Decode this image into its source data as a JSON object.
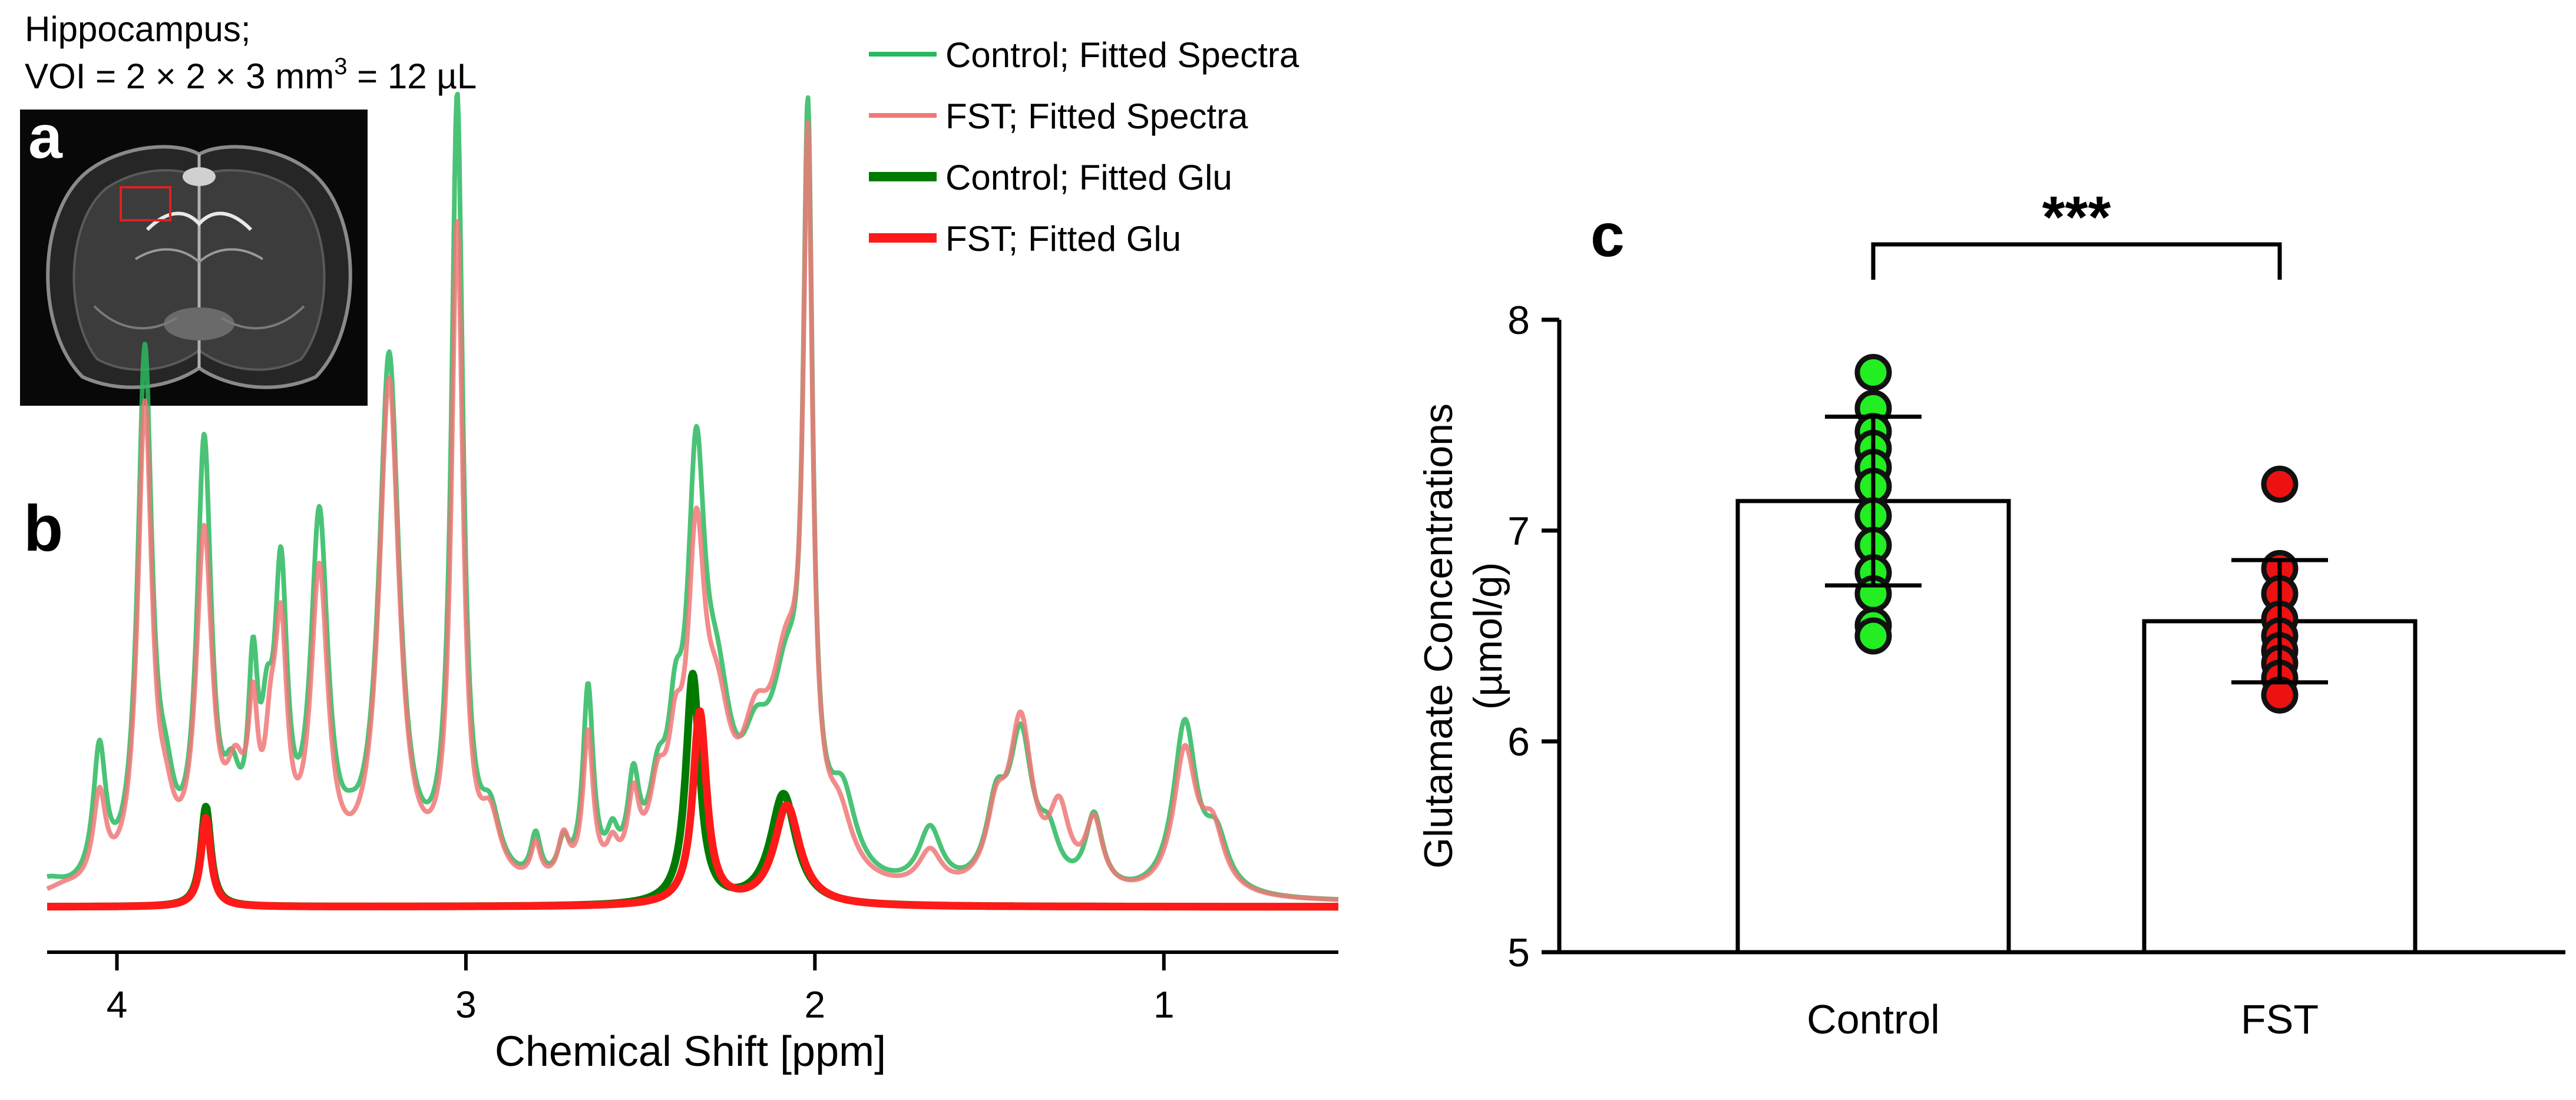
{
  "colors": {
    "control_spectra": "#2ab85e",
    "fst_spectra": "#f07878",
    "control_glu": "#007a00",
    "fst_glu": "#ff1a1a",
    "control_dot": "#22ee22",
    "fst_dot": "#ee1111",
    "mri_roi": "#e02020"
  },
  "panel_a": {
    "label": "a",
    "region": "Hippocampus;",
    "voi_prefix": "VOI = 2 × 2 × 3 mm",
    "voi_superscript": "3",
    "voi_suffix": " = 12 µL",
    "image_name": "coronal-mri-slice"
  },
  "panel_c": {
    "label": "c"
  },
  "chart_data": [
    {
      "id": "b",
      "type": "line",
      "label": "b",
      "xlabel": "Chemical Shift [ppm]",
      "ylabel": "",
      "xlim": [
        4.2,
        0.5
      ],
      "x_reversed": true,
      "xticks": [
        4,
        3,
        2,
        1
      ],
      "xtick_labels": [
        "4",
        "3",
        "2",
        "1"
      ],
      "legend": [
        {
          "label": "Control; Fitted Spectra",
          "series": "control_spectra"
        },
        {
          "label": "FST; Fitted Spectra",
          "series": "fst_spectra"
        },
        {
          "label": "Control; Fitted Glu",
          "series": "control_glu"
        },
        {
          "label": "FST; Fitted Glu",
          "series": "fst_glu"
        }
      ],
      "legend_position": "top-right",
      "series": [
        {
          "name": "Control; Fitted Spectra",
          "key": "control_spectra",
          "color": "#2ab85e",
          "width": 8,
          "baseline": 0.005,
          "peaks": [
            [
              4.2,
              0.02,
              0.06
            ],
            [
              4.05,
              0.18,
              0.022
            ],
            [
              3.92,
              0.71,
              0.025
            ],
            [
              3.86,
              0.08,
              0.03
            ],
            [
              3.75,
              0.58,
              0.025
            ],
            [
              3.67,
              0.1,
              0.03
            ],
            [
              3.61,
              0.24,
              0.017
            ],
            [
              3.57,
              0.14,
              0.02
            ],
            [
              3.53,
              0.38,
              0.022
            ],
            [
              3.42,
              0.48,
              0.03
            ],
            [
              3.33,
              0.02,
              0.03
            ],
            [
              3.22,
              0.71,
              0.035
            ],
            [
              3.025,
              1.05,
              0.02
            ],
            [
              2.93,
              0.08,
              0.035
            ],
            [
              2.8,
              0.06,
              0.017
            ],
            [
              2.72,
              0.05,
              0.02
            ],
            [
              2.65,
              0.26,
              0.018
            ],
            [
              2.58,
              0.05,
              0.02
            ],
            [
              2.52,
              0.12,
              0.02
            ],
            [
              2.45,
              0.1,
              0.03
            ],
            [
              2.4,
              0.14,
              0.025
            ],
            [
              2.34,
              0.5,
              0.03
            ],
            [
              2.28,
              0.2,
              0.05
            ],
            [
              2.17,
              0.12,
              0.05
            ],
            [
              2.08,
              0.24,
              0.06
            ],
            [
              2.02,
              0.92,
              0.016
            ],
            [
              1.92,
              0.1,
              0.045
            ],
            [
              1.67,
              0.08,
              0.04
            ],
            [
              1.48,
              0.1,
              0.035
            ],
            [
              1.41,
              0.2,
              0.04
            ],
            [
              1.33,
              0.06,
              0.035
            ],
            [
              1.2,
              0.1,
              0.03
            ],
            [
              0.94,
              0.23,
              0.04
            ],
            [
              0.85,
              0.07,
              0.04
            ]
          ]
        },
        {
          "name": "FST; Fitted Spectra",
          "key": "fst_spectra",
          "color": "#f07878",
          "width": 8,
          "baseline": 0.005,
          "peaks": [
            [
              4.15,
              0.01,
              0.06
            ],
            [
              4.05,
              0.12,
              0.022
            ],
            [
              3.92,
              0.64,
              0.025
            ],
            [
              3.86,
              0.06,
              0.03
            ],
            [
              3.75,
              0.46,
              0.028
            ],
            [
              3.66,
              0.12,
              0.035
            ],
            [
              3.61,
              0.18,
              0.017
            ],
            [
              3.56,
              0.12,
              0.02
            ],
            [
              3.53,
              0.3,
              0.022
            ],
            [
              3.42,
              0.41,
              0.03
            ],
            [
              3.22,
              0.68,
              0.035
            ],
            [
              3.025,
              0.88,
              0.02
            ],
            [
              2.93,
              0.08,
              0.035
            ],
            [
              2.8,
              0.05,
              0.017
            ],
            [
              2.72,
              0.06,
              0.02
            ],
            [
              2.65,
              0.2,
              0.018
            ],
            [
              2.58,
              0.04,
              0.02
            ],
            [
              2.52,
              0.1,
              0.02
            ],
            [
              2.45,
              0.1,
              0.03
            ],
            [
              2.4,
              0.12,
              0.025
            ],
            [
              2.34,
              0.4,
              0.03
            ],
            [
              2.28,
              0.18,
              0.05
            ],
            [
              2.17,
              0.14,
              0.05
            ],
            [
              2.08,
              0.26,
              0.06
            ],
            [
              2.02,
              0.88,
              0.016
            ],
            [
              1.93,
              0.07,
              0.045
            ],
            [
              1.67,
              0.05,
              0.04
            ],
            [
              1.48,
              0.09,
              0.035
            ],
            [
              1.41,
              0.22,
              0.04
            ],
            [
              1.3,
              0.1,
              0.035
            ],
            [
              1.2,
              0.09,
              0.03
            ],
            [
              0.94,
              0.19,
              0.04
            ],
            [
              0.86,
              0.08,
              0.04
            ]
          ]
        },
        {
          "name": "Control; Fitted Glu",
          "key": "control_glu",
          "color": "#007a00",
          "width": 13,
          "baseline": 0,
          "peaks": [
            [
              3.745,
              0.135,
              0.017
            ],
            [
              2.35,
              0.31,
              0.024
            ],
            [
              2.09,
              0.15,
              0.045
            ]
          ]
        },
        {
          "name": "FST; Fitted Glu",
          "key": "fst_glu",
          "color": "#ff1a1a",
          "width": 13,
          "baseline": 0,
          "peaks": [
            [
              3.745,
              0.12,
              0.017
            ],
            [
              2.33,
              0.26,
              0.024
            ],
            [
              2.08,
              0.135,
              0.045
            ]
          ]
        }
      ]
    },
    {
      "id": "c",
      "type": "bar",
      "label": "c",
      "title": "",
      "xlabel": "",
      "ylabel": [
        "Glutamate Concentrations",
        "(µmol/g)"
      ],
      "ylim": [
        5,
        8
      ],
      "yticks": [
        5,
        6,
        7,
        8
      ],
      "categories": [
        "Control",
        "FST"
      ],
      "values": [
        7.14,
        6.57
      ],
      "errors": [
        0.4,
        0.29
      ],
      "points": [
        [
          7.75,
          7.58,
          7.47,
          7.39,
          7.3,
          7.21,
          7.07,
          6.93,
          6.8,
          6.7,
          6.55,
          6.5
        ],
        [
          7.22,
          6.82,
          6.7,
          6.58,
          6.5,
          6.43,
          6.37,
          6.3,
          6.22
        ]
      ],
      "point_colors": [
        "#22ee22",
        "#ee1111"
      ],
      "significance": {
        "label": "***",
        "between": [
          "Control",
          "FST"
        ]
      }
    }
  ]
}
